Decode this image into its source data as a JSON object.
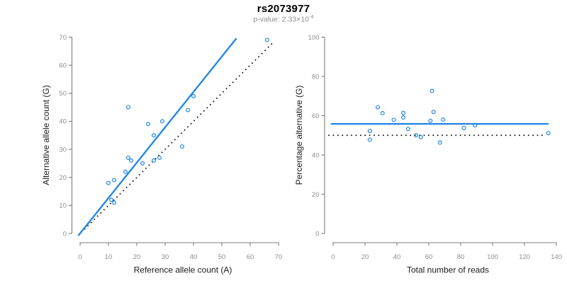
{
  "figure": {
    "title": "rs2073977",
    "subtitle_base": "p-value: 2.33×10",
    "subtitle_exponent": "-4",
    "background": "#ffffff"
  },
  "colors": {
    "accent_blue": "#1e86e6",
    "dotted_black": "#000000",
    "tick_label": "#8e8e8e",
    "axis_line": "#7d7d7d",
    "axis_title": "#1a1a1a",
    "subtitle_gray": "#8e8e8e",
    "title_black": "#000000",
    "marker_stroke": "#1e86e6"
  },
  "chart_data": [
    {
      "type": "scatter",
      "title": "rs2073977",
      "subtitle": "p-value: 2.33×10^-4",
      "xlabel": "Reference allele count (A)",
      "ylabel": "Alternative allele count (G)",
      "xlim": [
        0,
        70
      ],
      "ylim": [
        0,
        70
      ],
      "xticks": [
        0,
        10,
        20,
        30,
        40,
        50,
        60,
        70
      ],
      "yticks": [
        0,
        10,
        20,
        30,
        40,
        50,
        60,
        70
      ],
      "grid": false,
      "marker": "open-circle",
      "points": [
        [
          10,
          18
        ],
        [
          11,
          12
        ],
        [
          12,
          11
        ],
        [
          12,
          19
        ],
        [
          16,
          22
        ],
        [
          17,
          27
        ],
        [
          17,
          45
        ],
        [
          18,
          26
        ],
        [
          22,
          25
        ],
        [
          24,
          39
        ],
        [
          26,
          26
        ],
        [
          26,
          35
        ],
        [
          28,
          27
        ],
        [
          29,
          40
        ],
        [
          36,
          31
        ],
        [
          38,
          44
        ],
        [
          40,
          49
        ],
        [
          66,
          69
        ]
      ],
      "regression_line": {
        "style": "solid-blue",
        "slope": 1.26,
        "intercept": 0,
        "x1": -0.5,
        "y1": -0.6,
        "x2": 55,
        "y2": 69.4
      },
      "identity_line": {
        "style": "dotted-black",
        "slope": 1,
        "intercept": 0,
        "x1": 1.5,
        "y1": 1.5,
        "x2": 68.3,
        "y2": 68.3
      }
    },
    {
      "type": "scatter",
      "title": "",
      "xlabel": "Total number of reads",
      "ylabel": "Percentage alternative (G)",
      "xlim": [
        0,
        140
      ],
      "ylim": [
        0,
        100
      ],
      "xticks": [
        0,
        20,
        40,
        60,
        80,
        100,
        120,
        140
      ],
      "yticks": [
        0,
        20,
        40,
        60,
        80,
        100
      ],
      "grid": false,
      "marker": "open-circle",
      "points": [
        [
          23,
          47.8
        ],
        [
          23,
          52.2
        ],
        [
          28,
          64.3
        ],
        [
          31,
          61.3
        ],
        [
          38,
          57.9
        ],
        [
          44,
          59.1
        ],
        [
          44,
          61.4
        ],
        [
          47,
          53.2
        ],
        [
          52,
          50.0
        ],
        [
          55,
          49.1
        ],
        [
          61,
          57.4
        ],
        [
          62,
          72.6
        ],
        [
          63,
          61.9
        ],
        [
          67,
          46.3
        ],
        [
          69,
          58.0
        ],
        [
          82,
          53.7
        ],
        [
          89,
          55.1
        ],
        [
          135,
          51.1
        ]
      ],
      "mean_line": {
        "style": "solid-blue",
        "y": 55.8,
        "x1": -1,
        "x2": 134.7
      },
      "reference_line": {
        "style": "dotted-black",
        "y": 50,
        "x1": -3,
        "x2": 133
      }
    }
  ]
}
